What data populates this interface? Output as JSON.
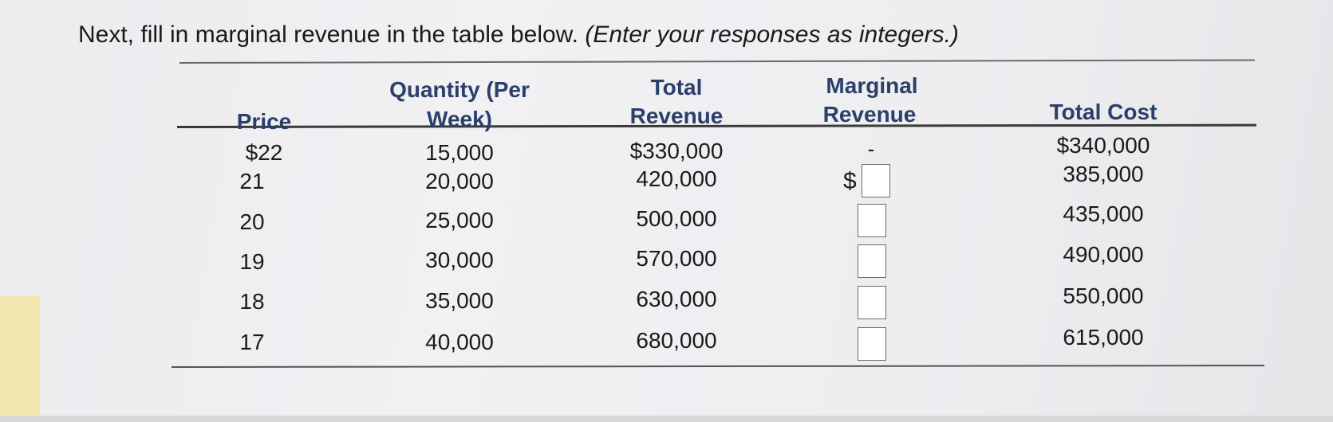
{
  "instruction": {
    "text": "Next, fill in marginal revenue in the table below.",
    "note": "(Enter your responses as integers.)"
  },
  "table": {
    "headers": {
      "price": "Price",
      "quantity_line1": "Quantity (Per",
      "quantity_line2": "Week)",
      "total_revenue_line1": "Total",
      "total_revenue_line2": "Revenue",
      "marginal_revenue_line1": "Marginal",
      "marginal_revenue_line2": "Revenue",
      "total_cost": "Total Cost"
    },
    "rows": [
      {
        "price": "$22",
        "quantity": "15,000",
        "total_revenue": "$330,000",
        "marginal_revenue": "-",
        "total_cost": "$340,000"
      },
      {
        "price": "21",
        "quantity": "20,000",
        "total_revenue": "420,000",
        "marginal_revenue_prefix": "$",
        "marginal_revenue": "",
        "total_cost": "385,000"
      },
      {
        "price": "20",
        "quantity": "25,000",
        "total_revenue": "500,000",
        "marginal_revenue": "",
        "total_cost": "435,000"
      },
      {
        "price": "19",
        "quantity": "30,000",
        "total_revenue": "570,000",
        "marginal_revenue": "",
        "total_cost": "490,000"
      },
      {
        "price": "18",
        "quantity": "35,000",
        "total_revenue": "630,000",
        "marginal_revenue": "",
        "total_cost": "550,000"
      },
      {
        "price": "17",
        "quantity": "40,000",
        "total_revenue": "680,000",
        "marginal_revenue": "",
        "total_cost": "615,000"
      }
    ]
  }
}
